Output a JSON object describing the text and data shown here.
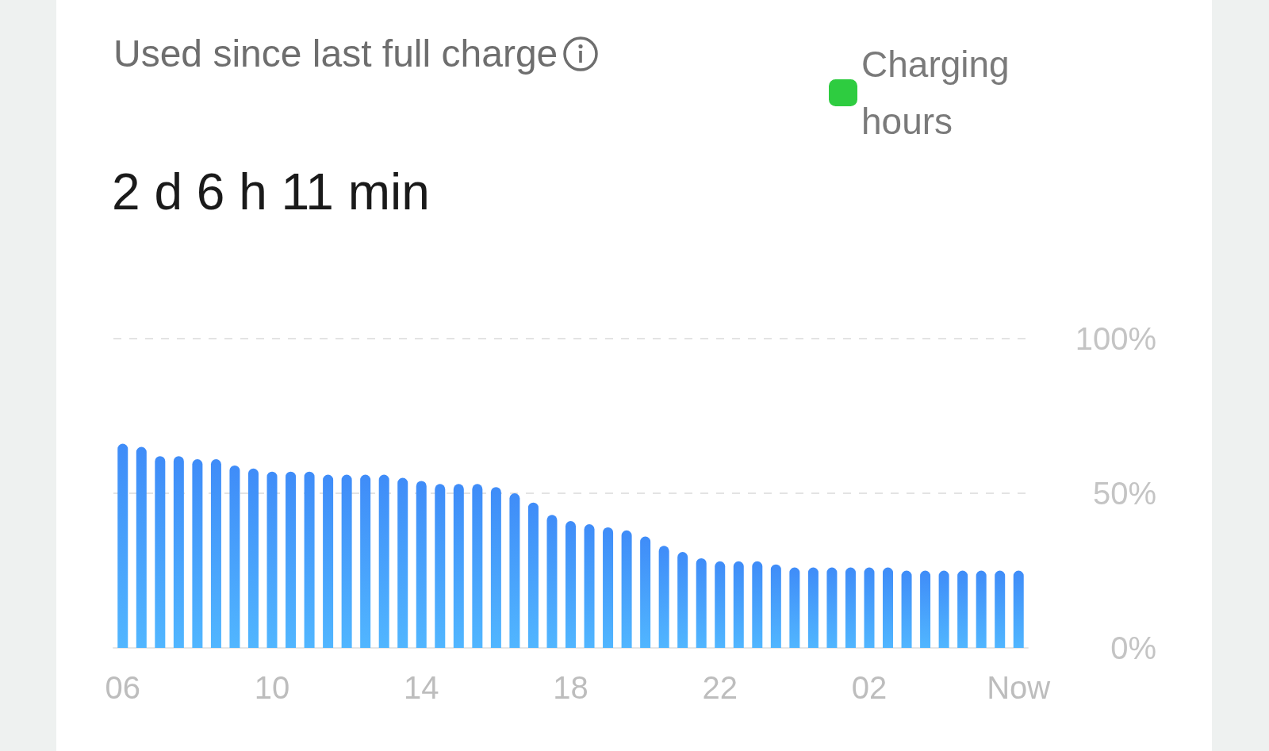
{
  "chart_data": {
    "type": "bar",
    "title": "Used since last full charge",
    "subtitle": "2 d 6 h 11 min",
    "categories": [
      "06",
      null,
      null,
      null,
      null,
      null,
      null,
      null,
      "10",
      null,
      null,
      null,
      null,
      null,
      null,
      null,
      "14",
      null,
      null,
      null,
      null,
      null,
      null,
      null,
      "18",
      null,
      null,
      null,
      null,
      null,
      null,
      null,
      "22",
      null,
      null,
      null,
      null,
      null,
      null,
      null,
      "02",
      null,
      null,
      null,
      null,
      null,
      null,
      null,
      "Now"
    ],
    "series": [
      {
        "color": "#3f8cf8",
        "values": [
          66,
          65,
          62,
          62,
          61,
          61,
          59,
          58,
          57,
          57,
          57,
          56,
          56,
          56,
          56,
          55,
          54,
          53,
          53,
          53,
          52,
          50,
          47,
          43,
          41,
          40,
          39,
          38,
          36,
          33,
          31,
          29,
          28,
          28,
          28,
          27,
          26,
          26,
          26,
          26,
          26,
          26,
          25,
          25,
          25,
          25,
          25,
          25,
          25
        ]
      },
      {
        "name": "Charging hours",
        "color": "#2ecc40",
        "values": [
          null,
          null,
          null,
          null,
          null,
          null,
          null,
          null,
          null,
          null,
          null,
          null,
          null,
          null,
          null,
          null,
          null,
          null,
          null,
          null,
          null,
          null,
          null,
          null,
          null,
          null,
          null,
          null,
          null,
          null,
          null,
          null,
          null,
          null,
          null,
          null,
          null,
          null,
          null,
          null,
          null,
          null,
          null,
          null,
          null,
          null,
          null,
          null,
          null
        ]
      }
    ],
    "ylim": [
      0,
      100
    ],
    "yticks": [
      {
        "value": 0,
        "label": "0%"
      },
      {
        "value": 50,
        "label": "50%"
      },
      {
        "value": 100,
        "label": "100%"
      }
    ],
    "grid": "y",
    "legend": "top right"
  }
}
